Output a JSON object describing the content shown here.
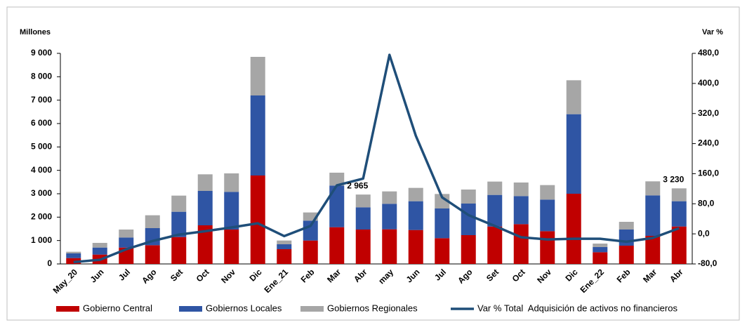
{
  "chart_data": {
    "type": "bar-line",
    "y_label": "Millones",
    "y2_label": "Var %",
    "categories": [
      "May_20",
      "Jun",
      "Jul",
      "Ago",
      "Set",
      "Oct",
      "Nov",
      "Dic",
      "Ene_21",
      "Feb",
      "Mar",
      "Abr",
      "may",
      "Jun",
      "Jul",
      "Ago",
      "Set",
      "Oct",
      "Nov",
      "Dic",
      "Ene_22",
      "Feb",
      "Mar",
      "Abr"
    ],
    "series": [
      {
        "name": "Gobierno Central",
        "color": "#c00000",
        "values": [
          250,
          400,
          700,
          800,
          1150,
          1650,
          1470,
          3780,
          630,
          1000,
          1570,
          1470,
          1480,
          1450,
          1100,
          1230,
          1600,
          1700,
          1400,
          3000,
          500,
          780,
          1200,
          1600
        ]
      },
      {
        "name": "Gobiernos Locales",
        "color": "#2f55a4",
        "values": [
          200,
          300,
          430,
          730,
          1080,
          1470,
          1610,
          3420,
          210,
          850,
          1780,
          950,
          1090,
          1230,
          1270,
          1350,
          1350,
          1200,
          1350,
          3400,
          220,
          690,
          1730,
          1080
        ]
      },
      {
        "name": "Gobiernos Regionales",
        "color": "#a6a6a6",
        "values": [
          70,
          200,
          340,
          550,
          690,
          710,
          790,
          1650,
          160,
          350,
          550,
          545,
          530,
          570,
          620,
          600,
          570,
          580,
          620,
          1450,
          150,
          330,
          600,
          550
        ]
      },
      {
        "name": "Var % Total  Adquisición de activos no financieros",
        "color": "#1f4e79",
        "axis": "y2",
        "values": [
          -75,
          -69,
          -41,
          -19,
          -2,
          7,
          17,
          28,
          -6,
          21,
          129,
          147,
          476,
          261,
          97,
          50,
          21,
          -9,
          -15,
          -13,
          -13,
          -21,
          -11,
          15
        ]
      }
    ],
    "annotations": [
      {
        "at": 11,
        "value": 2965,
        "label": "2 965"
      },
      {
        "at": 23,
        "value": 3230,
        "label": "3 230"
      }
    ],
    "ylim": [
      0,
      9000
    ],
    "yticks": [
      0,
      {
        "value": 1000,
        "label": "1 000"
      },
      {
        "value": 2000,
        "label": "2 000"
      },
      {
        "value": 3000,
        "label": "3 000"
      },
      {
        "value": 4000,
        "label": "4 000"
      },
      {
        "value": 5000,
        "label": "5 000"
      },
      {
        "value": 6000,
        "label": "6 000"
      },
      {
        "value": 7000,
        "label": "7 000"
      },
      {
        "value": 8000,
        "label": "8 000"
      },
      {
        "value": 9000,
        "label": "9 000"
      }
    ],
    "y2lim": [
      -80,
      480
    ],
    "y2ticks": [
      {
        "value": -80,
        "label": "-80,0"
      },
      {
        "value": 0,
        "label": "0,0"
      },
      {
        "value": 80,
        "label": "80,0"
      },
      {
        "value": 160,
        "label": "160,0"
      },
      {
        "value": 240,
        "label": "240,0"
      },
      {
        "value": 320,
        "label": "320,0"
      },
      {
        "value": 400,
        "label": "400,0"
      },
      {
        "value": 480,
        "label": "480,0"
      }
    ]
  }
}
